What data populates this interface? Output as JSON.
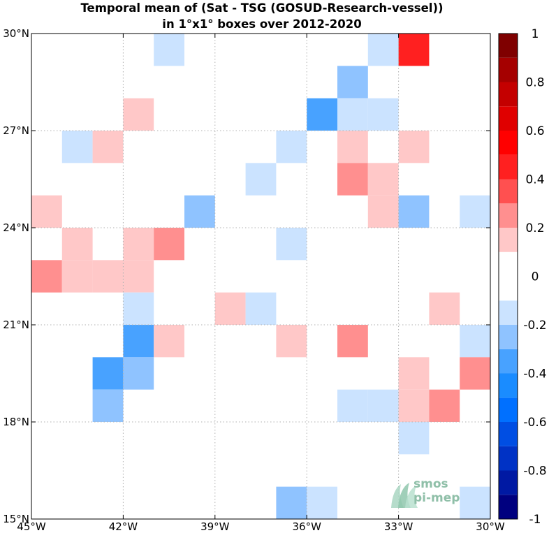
{
  "chart_data": {
    "type": "heatmap",
    "title_lines": [
      "Temporal mean of (Sat - TSG (GOSUD-Research-vessel))",
      "in 1°x1° boxes over 2012-2020"
    ],
    "x_range": [
      -45,
      -30
    ],
    "y_range": [
      15,
      30
    ],
    "x_ticks": [
      {
        "value": -45,
        "label": "45°W"
      },
      {
        "value": -42,
        "label": "42°W"
      },
      {
        "value": -39,
        "label": "39°W"
      },
      {
        "value": -36,
        "label": "36°W"
      },
      {
        "value": -33,
        "label": "33°W"
      },
      {
        "value": -30,
        "label": "30°W"
      }
    ],
    "y_ticks": [
      {
        "value": 30,
        "label": "30°N"
      },
      {
        "value": 27,
        "label": "27°N"
      },
      {
        "value": 24,
        "label": "24°N"
      },
      {
        "value": 21,
        "label": "21°N"
      },
      {
        "value": 18,
        "label": "18°N"
      },
      {
        "value": 15,
        "label": "15°N"
      }
    ],
    "grid": true,
    "cell_size_deg": 1,
    "cells": [
      {
        "lon": -41,
        "lat": 29,
        "value": -0.15
      },
      {
        "lon": -34,
        "lat": 29,
        "value": -0.15
      },
      {
        "lon": -33,
        "lat": 29,
        "value": 0.45
      },
      {
        "lon": -35,
        "lat": 28,
        "value": -0.25
      },
      {
        "lon": -42,
        "lat": 27,
        "value": 0.15
      },
      {
        "lon": -36,
        "lat": 27,
        "value": -0.35
      },
      {
        "lon": -35,
        "lat": 27,
        "value": -0.15
      },
      {
        "lon": -34,
        "lat": 27,
        "value": -0.15
      },
      {
        "lon": -44,
        "lat": 26,
        "value": -0.15
      },
      {
        "lon": -43,
        "lat": 26,
        "value": 0.15
      },
      {
        "lon": -37,
        "lat": 26,
        "value": -0.15
      },
      {
        "lon": -35,
        "lat": 26,
        "value": 0.15
      },
      {
        "lon": -33,
        "lat": 26,
        "value": 0.15
      },
      {
        "lon": -38,
        "lat": 25,
        "value": -0.15
      },
      {
        "lon": -35,
        "lat": 25,
        "value": 0.25
      },
      {
        "lon": -34,
        "lat": 25,
        "value": 0.15
      },
      {
        "lon": -45,
        "lat": 24,
        "value": 0.15
      },
      {
        "lon": -40,
        "lat": 24,
        "value": -0.25
      },
      {
        "lon": -34,
        "lat": 24,
        "value": 0.15
      },
      {
        "lon": -33,
        "lat": 24,
        "value": -0.25
      },
      {
        "lon": -31,
        "lat": 24,
        "value": -0.15
      },
      {
        "lon": -44,
        "lat": 23,
        "value": 0.15
      },
      {
        "lon": -42,
        "lat": 23,
        "value": 0.15
      },
      {
        "lon": -41,
        "lat": 23,
        "value": 0.25
      },
      {
        "lon": -37,
        "lat": 23,
        "value": -0.15
      },
      {
        "lon": -45,
        "lat": 22,
        "value": 0.25
      },
      {
        "lon": -44,
        "lat": 22,
        "value": 0.15
      },
      {
        "lon": -43,
        "lat": 22,
        "value": 0.15
      },
      {
        "lon": -42,
        "lat": 22,
        "value": 0.15
      },
      {
        "lon": -42,
        "lat": 21,
        "value": -0.15
      },
      {
        "lon": -39,
        "lat": 21,
        "value": 0.15
      },
      {
        "lon": -38,
        "lat": 21,
        "value": -0.15
      },
      {
        "lon": -32,
        "lat": 21,
        "value": 0.15
      },
      {
        "lon": -42,
        "lat": 20,
        "value": -0.35
      },
      {
        "lon": -41,
        "lat": 20,
        "value": 0.15
      },
      {
        "lon": -37,
        "lat": 20,
        "value": 0.15
      },
      {
        "lon": -35,
        "lat": 20,
        "value": 0.25
      },
      {
        "lon": -31,
        "lat": 20,
        "value": -0.15
      },
      {
        "lon": -43,
        "lat": 19,
        "value": -0.35
      },
      {
        "lon": -42,
        "lat": 19,
        "value": -0.25
      },
      {
        "lon": -33,
        "lat": 19,
        "value": 0.15
      },
      {
        "lon": -31,
        "lat": 19,
        "value": 0.25
      },
      {
        "lon": -43,
        "lat": 18,
        "value": -0.25
      },
      {
        "lon": -35,
        "lat": 18,
        "value": -0.15
      },
      {
        "lon": -34,
        "lat": 18,
        "value": -0.15
      },
      {
        "lon": -33,
        "lat": 18,
        "value": 0.15
      },
      {
        "lon": -32,
        "lat": 18,
        "value": 0.25
      },
      {
        "lon": -33,
        "lat": 17,
        "value": -0.15
      },
      {
        "lon": -37,
        "lat": 15,
        "value": -0.25
      },
      {
        "lon": -36,
        "lat": 15,
        "value": -0.15
      },
      {
        "lon": -31,
        "lat": 15,
        "value": -0.15
      }
    ],
    "colorbar": {
      "range": [
        -1,
        1
      ],
      "step": 0.1,
      "tick_labels": [
        {
          "value": 1,
          "label": "1"
        },
        {
          "value": 0.8,
          "label": "0.8"
        },
        {
          "value": 0.6,
          "label": "0.6"
        },
        {
          "value": 0.4,
          "label": "0.4"
        },
        {
          "value": 0.2,
          "label": "0.2"
        },
        {
          "value": 0,
          "label": "0"
        },
        {
          "value": -0.2,
          "label": "-0.2"
        },
        {
          "value": -0.4,
          "label": "-0.4"
        },
        {
          "value": -0.6,
          "label": "-0.6"
        },
        {
          "value": -0.8,
          "label": "-0.8"
        },
        {
          "value": -1,
          "label": "-1"
        }
      ],
      "colors_low_to_high": [
        "#00007f",
        "#0019a3",
        "#0032c5",
        "#004ee3",
        "#0070ff",
        "#1a8cff",
        "#48a2ff",
        "#8fc3ff",
        "#cbe3ff",
        "#ffffff",
        "#ffffff",
        "#ffc8c8",
        "#ff8f8f",
        "#ff5050",
        "#ff2020",
        "#ff0000",
        "#e00000",
        "#c40000",
        "#a50000",
        "#7f0000"
      ]
    }
  },
  "logo": {
    "line1": "smos",
    "line2": "pi-mep"
  }
}
